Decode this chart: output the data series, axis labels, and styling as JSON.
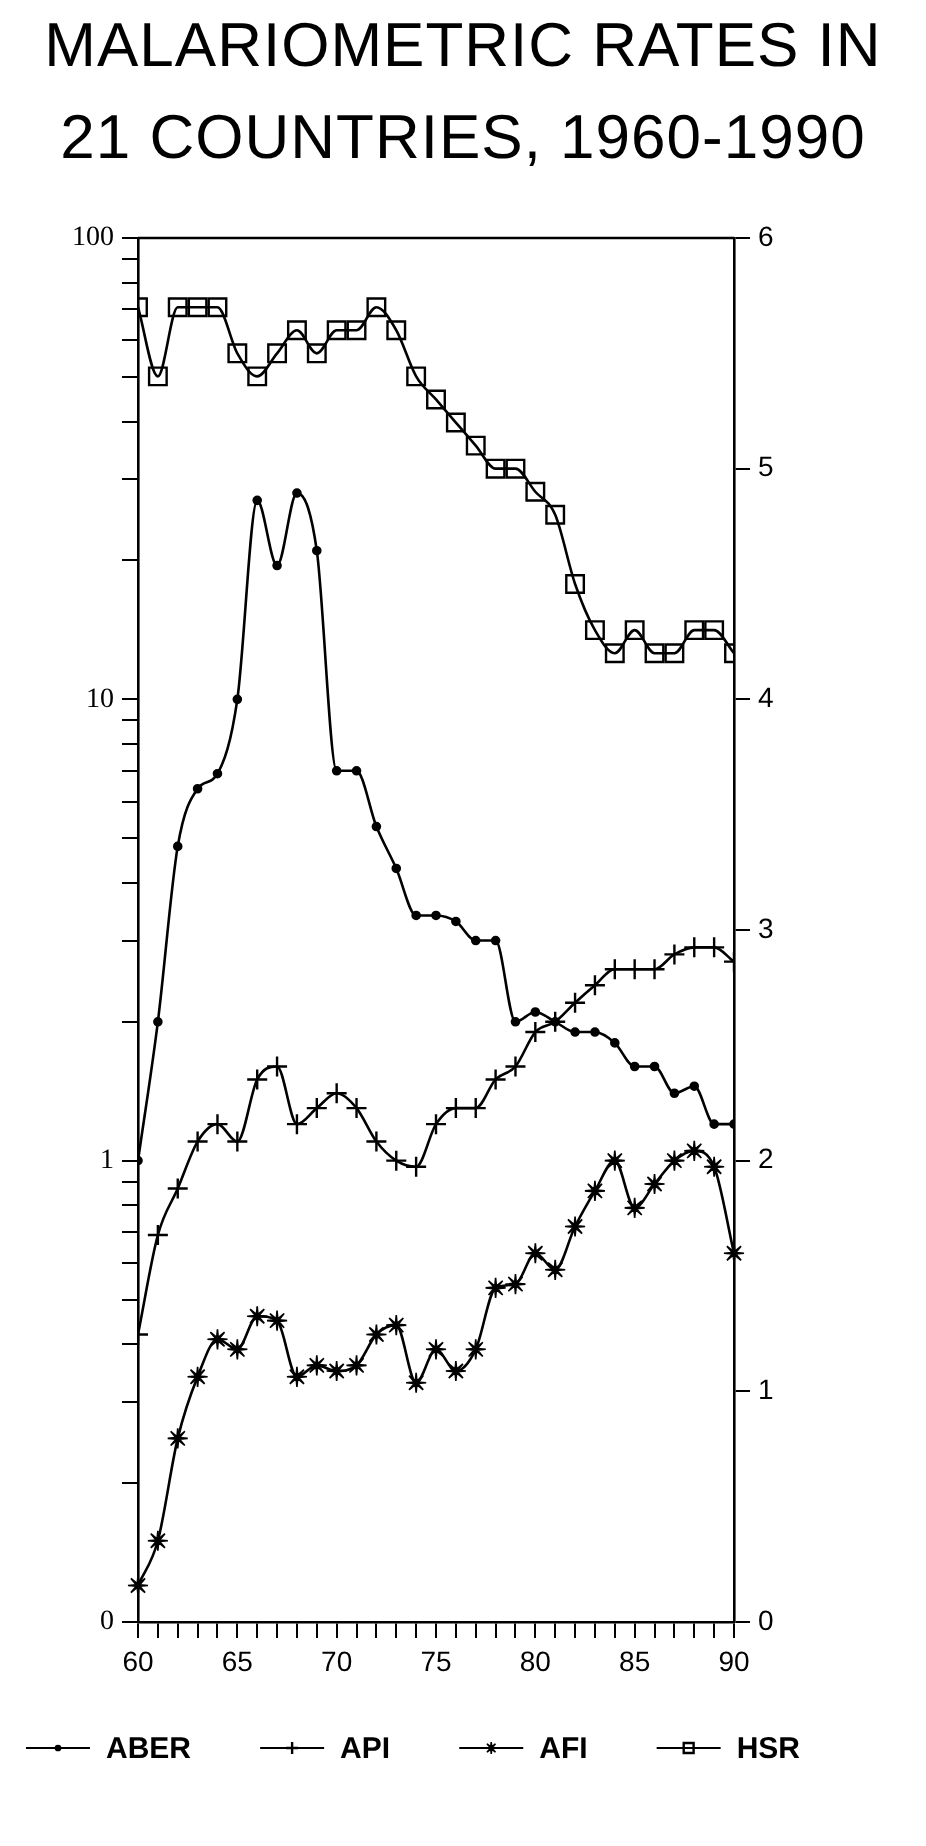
{
  "chart_data": {
    "type": "line",
    "title": "MALARIOMETRIC RATES IN 21 COUNTRIES, 1960-1990",
    "x": [
      60,
      61,
      62,
      63,
      64,
      65,
      66,
      67,
      68,
      69,
      70,
      71,
      72,
      73,
      74,
      75,
      76,
      77,
      78,
      79,
      80,
      81,
      82,
      83,
      84,
      85,
      86,
      87,
      88,
      89,
      90
    ],
    "series": [
      {
        "name": "ABER",
        "color": "#000000",
        "marker": "circle",
        "values": [
          1.0,
          2.0,
          4.8,
          6.4,
          6.9,
          10,
          27,
          19.5,
          28,
          21,
          7.0,
          7.0,
          5.3,
          4.3,
          3.4,
          3.4,
          3.3,
          3.0,
          3.0,
          2.0,
          2.1,
          2.0,
          1.9,
          1.9,
          1.8,
          1.6,
          1.6,
          1.4,
          1.45,
          1.2,
          1.2
        ]
      },
      {
        "name": "API",
        "color": "#000000",
        "marker": "cross",
        "values": [
          0.42,
          0.69,
          0.87,
          1.1,
          1.2,
          1.1,
          1.5,
          1.6,
          1.2,
          1.3,
          1.4,
          1.3,
          1.1,
          1.0,
          0.97,
          1.2,
          1.3,
          1.3,
          1.5,
          1.6,
          1.9,
          2.0,
          2.2,
          2.4,
          2.6,
          2.6,
          2.6,
          2.8,
          2.9,
          2.9,
          2.7
        ]
      },
      {
        "name": "AFI",
        "color": "#000000",
        "marker": "star",
        "values": [
          0.12,
          0.15,
          0.25,
          0.34,
          0.41,
          0.39,
          0.46,
          0.45,
          0.34,
          0.36,
          0.35,
          0.36,
          0.42,
          0.44,
          0.33,
          0.39,
          0.35,
          0.39,
          0.53,
          0.54,
          0.63,
          0.58,
          0.72,
          0.86,
          1.0,
          0.79,
          0.89,
          1.0,
          1.05,
          0.97,
          0.63
        ]
      },
      {
        "name": "HSR",
        "color": "#000000",
        "marker": "square",
        "axis": "y2",
        "values": [
          5.7,
          5.4,
          5.7,
          5.7,
          5.7,
          5.5,
          5.4,
          5.5,
          5.6,
          5.5,
          5.6,
          5.6,
          5.7,
          5.6,
          5.4,
          5.3,
          5.2,
          5.1,
          5.0,
          5.0,
          4.9,
          4.8,
          4.5,
          4.3,
          4.2,
          4.3,
          4.2,
          4.2,
          4.3,
          4.3,
          4.2
        ]
      }
    ],
    "xlim": [
      60,
      90
    ],
    "xticks": [
      60,
      {
        "value": 61,
        "label": null
      },
      {
        "value": 62,
        "label": null
      },
      {
        "value": 63,
        "label": null
      },
      {
        "value": 64,
        "label": null
      },
      65,
      {
        "value": 66,
        "label": null
      },
      {
        "value": 67,
        "label": null
      },
      {
        "value": 68,
        "label": null
      },
      {
        "value": 69,
        "label": null
      },
      70,
      {
        "value": 71,
        "label": null
      },
      {
        "value": 72,
        "label": null
      },
      {
        "value": 73,
        "label": null
      },
      {
        "value": 74,
        "label": null
      },
      75,
      {
        "value": 76,
        "label": null
      },
      {
        "value": 77,
        "label": null
      },
      {
        "value": 78,
        "label": null
      },
      {
        "value": 79,
        "label": null
      },
      80,
      {
        "value": 81,
        "label": null
      },
      {
        "value": 82,
        "label": null
      },
      {
        "value": 83,
        "label": null
      },
      {
        "value": 84,
        "label": null
      },
      85,
      {
        "value": 86,
        "label": null
      },
      {
        "value": 87,
        "label": null
      },
      {
        "value": 88,
        "label": null
      },
      {
        "value": 89,
        "label": null
      },
      90
    ],
    "ylim": [
      0.1,
      100
    ],
    "yticks": [
      {
        "value": 0.1,
        "label": "0"
      },
      {
        "value": 0.2,
        "label": null
      },
      {
        "value": 0.3,
        "label": null
      },
      {
        "value": 0.4,
        "label": null
      },
      {
        "value": 0.5,
        "label": null
      },
      {
        "value": 0.6,
        "label": null
      },
      {
        "value": 0.7,
        "label": null
      },
      {
        "value": 0.8,
        "label": null
      },
      {
        "value": 0.9,
        "label": null
      },
      1,
      {
        "value": 2,
        "label": null
      },
      {
        "value": 3,
        "label": null
      },
      {
        "value": 4,
        "label": null
      },
      {
        "value": 5,
        "label": null
      },
      {
        "value": 6,
        "label": null
      },
      {
        "value": 7,
        "label": null
      },
      {
        "value": 8,
        "label": null
      },
      {
        "value": 9,
        "label": null
      },
      10,
      {
        "value": 20,
        "label": null
      },
      {
        "value": 30,
        "label": null
      },
      {
        "value": 40,
        "label": null
      },
      {
        "value": 50,
        "label": null
      },
      {
        "value": 60,
        "label": null
      },
      {
        "value": 70,
        "label": null
      },
      {
        "value": 80,
        "label": null
      },
      {
        "value": 90,
        "label": null
      },
      100
    ],
    "y2lim": [
      0,
      6
    ],
    "y2ticks": [
      0,
      1,
      2,
      3,
      4,
      5,
      6
    ],
    "log": "y",
    "legend": "bottom",
    "line_style": "solid"
  }
}
